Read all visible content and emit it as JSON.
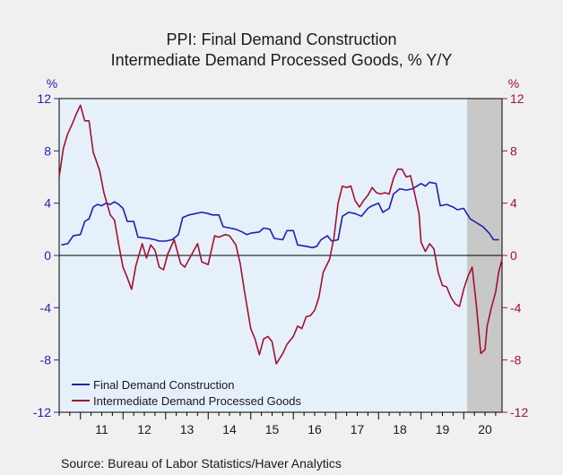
{
  "chart_data": {
    "type": "line",
    "title": [
      "PPI: Final Demand Construction",
      "Intermediate Demand Processed Goods, % Y/Y"
    ],
    "left_unit": "%",
    "right_unit": "%",
    "ylim": [
      -12,
      12
    ],
    "y_ticks": [
      12,
      8,
      4,
      0,
      -4,
      -8,
      -12
    ],
    "y_tick_labels": [
      "12",
      "8",
      "4",
      "0",
      "-4",
      "-8",
      "-12"
    ],
    "x_range": [
      2010.5,
      2020.9
    ],
    "x_ticks": [
      {
        "label": "11",
        "year": 2011
      },
      {
        "label": "12",
        "year": 2012
      },
      {
        "label": "13",
        "year": 2013
      },
      {
        "label": "14",
        "year": 2014
      },
      {
        "label": "15",
        "year": 2015
      },
      {
        "label": "16",
        "year": 2016
      },
      {
        "label": "17",
        "year": 2017
      },
      {
        "label": "18",
        "year": 2018
      },
      {
        "label": "19",
        "year": 2019
      },
      {
        "label": "20",
        "year": 2020
      }
    ],
    "recession_shading": [
      2020.08,
      2020.9
    ],
    "colors": {
      "plot_bg": "#e6f0fb",
      "recession": "#c8c8c8",
      "series_construction": "#1f1fb4",
      "series_processed": "#a3112f",
      "left_axis": "#1f1fb4",
      "right_axis": "#a3112f"
    },
    "legend": {
      "placement": "bottom-left"
    },
    "series": [
      {
        "name": "Final Demand Construction",
        "color": "#1f1fb4",
        "points": [
          [
            2010.55,
            0.8
          ],
          [
            2010.7,
            0.9
          ],
          [
            2010.83,
            1.5
          ],
          [
            2011.0,
            1.6
          ],
          [
            2011.1,
            2.6
          ],
          [
            2011.2,
            2.8
          ],
          [
            2011.3,
            3.7
          ],
          [
            2011.4,
            3.9
          ],
          [
            2011.5,
            3.8
          ],
          [
            2011.6,
            4.0
          ],
          [
            2011.7,
            3.9
          ],
          [
            2011.8,
            4.1
          ],
          [
            2011.9,
            3.9
          ],
          [
            2012.0,
            3.6
          ],
          [
            2012.1,
            2.6
          ],
          [
            2012.25,
            2.6
          ],
          [
            2012.35,
            1.4
          ],
          [
            2012.6,
            1.3
          ],
          [
            2012.75,
            1.2
          ],
          [
            2012.85,
            1.1
          ],
          [
            2013.0,
            1.1
          ],
          [
            2013.15,
            1.2
          ],
          [
            2013.3,
            1.6
          ],
          [
            2013.4,
            2.9
          ],
          [
            2013.55,
            3.1
          ],
          [
            2013.7,
            3.2
          ],
          [
            2013.85,
            3.3
          ],
          [
            2014.0,
            3.2
          ],
          [
            2014.1,
            3.1
          ],
          [
            2014.25,
            3.1
          ],
          [
            2014.35,
            2.2
          ],
          [
            2014.5,
            2.1
          ],
          [
            2014.65,
            2.0
          ],
          [
            2014.8,
            1.8
          ],
          [
            2014.9,
            1.6
          ],
          [
            2015.0,
            1.7
          ],
          [
            2015.2,
            1.8
          ],
          [
            2015.3,
            2.1
          ],
          [
            2015.45,
            2.0
          ],
          [
            2015.55,
            1.3
          ],
          [
            2015.75,
            1.2
          ],
          [
            2015.85,
            1.9
          ],
          [
            2016.0,
            1.9
          ],
          [
            2016.1,
            0.8
          ],
          [
            2016.3,
            0.7
          ],
          [
            2016.45,
            0.6
          ],
          [
            2016.55,
            0.7
          ],
          [
            2016.65,
            1.2
          ],
          [
            2016.8,
            1.5
          ],
          [
            2016.9,
            1.1
          ],
          [
            2017.05,
            1.2
          ],
          [
            2017.15,
            3.0
          ],
          [
            2017.3,
            3.3
          ],
          [
            2017.45,
            3.2
          ],
          [
            2017.6,
            3.0
          ],
          [
            2017.75,
            3.6
          ],
          [
            2017.85,
            3.8
          ],
          [
            2018.0,
            4.0
          ],
          [
            2018.1,
            3.3
          ],
          [
            2018.25,
            3.6
          ],
          [
            2018.35,
            4.7
          ],
          [
            2018.5,
            5.1
          ],
          [
            2018.65,
            5.0
          ],
          [
            2018.8,
            5.1
          ],
          [
            2018.9,
            5.3
          ],
          [
            2019.0,
            5.5
          ],
          [
            2019.1,
            5.3
          ],
          [
            2019.2,
            5.6
          ],
          [
            2019.35,
            5.5
          ],
          [
            2019.45,
            3.8
          ],
          [
            2019.6,
            3.9
          ],
          [
            2019.75,
            3.7
          ],
          [
            2019.85,
            3.5
          ],
          [
            2020.0,
            3.6
          ],
          [
            2020.15,
            2.8
          ],
          [
            2020.3,
            2.5
          ],
          [
            2020.45,
            2.2
          ],
          [
            2020.6,
            1.7
          ],
          [
            2020.7,
            1.2
          ],
          [
            2020.83,
            1.2
          ]
        ]
      },
      {
        "name": "Intermediate Demand Processed Goods",
        "color": "#a3112f",
        "points": [
          [
            2010.5,
            6.0
          ],
          [
            2010.6,
            8.2
          ],
          [
            2010.7,
            9.3
          ],
          [
            2010.8,
            10.0
          ],
          [
            2010.9,
            10.8
          ],
          [
            2011.0,
            11.5
          ],
          [
            2011.1,
            10.3
          ],
          [
            2011.2,
            10.3
          ],
          [
            2011.3,
            7.9
          ],
          [
            2011.45,
            6.5
          ],
          [
            2011.55,
            4.8
          ],
          [
            2011.7,
            3.1
          ],
          [
            2011.8,
            2.7
          ],
          [
            2011.9,
            0.8
          ],
          [
            2012.0,
            -0.9
          ],
          [
            2012.1,
            -1.7
          ],
          [
            2012.2,
            -2.6
          ],
          [
            2012.3,
            -0.8
          ],
          [
            2012.45,
            0.9
          ],
          [
            2012.55,
            -0.2
          ],
          [
            2012.65,
            0.8
          ],
          [
            2012.75,
            0.4
          ],
          [
            2012.85,
            -0.9
          ],
          [
            2012.95,
            -1.1
          ],
          [
            2013.05,
            0.1
          ],
          [
            2013.2,
            1.2
          ],
          [
            2013.35,
            -0.6
          ],
          [
            2013.45,
            -0.9
          ],
          [
            2013.6,
            0.0
          ],
          [
            2013.75,
            0.9
          ],
          [
            2013.85,
            -0.5
          ],
          [
            2014.0,
            -0.7
          ],
          [
            2014.15,
            1.5
          ],
          [
            2014.25,
            1.4
          ],
          [
            2014.4,
            1.6
          ],
          [
            2014.5,
            1.5
          ],
          [
            2014.65,
            0.8
          ],
          [
            2014.75,
            -0.6
          ],
          [
            2014.85,
            -2.7
          ],
          [
            2015.0,
            -5.6
          ],
          [
            2015.1,
            -6.4
          ],
          [
            2015.2,
            -7.6
          ],
          [
            2015.3,
            -6.4
          ],
          [
            2015.4,
            -6.2
          ],
          [
            2015.5,
            -6.6
          ],
          [
            2015.6,
            -8.3
          ],
          [
            2015.75,
            -7.5
          ],
          [
            2015.85,
            -6.8
          ],
          [
            2016.0,
            -6.2
          ],
          [
            2016.1,
            -5.4
          ],
          [
            2016.2,
            -5.6
          ],
          [
            2016.3,
            -4.7
          ],
          [
            2016.4,
            -4.6
          ],
          [
            2016.5,
            -4.2
          ],
          [
            2016.6,
            -3.2
          ],
          [
            2016.7,
            -1.3
          ],
          [
            2016.85,
            -0.3
          ],
          [
            2016.95,
            1.3
          ],
          [
            2017.05,
            4.0
          ],
          [
            2017.15,
            5.3
          ],
          [
            2017.25,
            5.2
          ],
          [
            2017.35,
            5.3
          ],
          [
            2017.45,
            4.2
          ],
          [
            2017.55,
            3.7
          ],
          [
            2017.65,
            4.2
          ],
          [
            2017.75,
            4.6
          ],
          [
            2017.85,
            5.2
          ],
          [
            2017.95,
            4.8
          ],
          [
            2018.05,
            4.7
          ],
          [
            2018.15,
            4.8
          ],
          [
            2018.25,
            4.7
          ],
          [
            2018.35,
            5.9
          ],
          [
            2018.45,
            6.6
          ],
          [
            2018.55,
            6.6
          ],
          [
            2018.65,
            6.0
          ],
          [
            2018.75,
            6.1
          ],
          [
            2018.85,
            4.7
          ],
          [
            2018.95,
            3.2
          ],
          [
            2019.0,
            1.0
          ],
          [
            2019.1,
            0.3
          ],
          [
            2019.2,
            0.9
          ],
          [
            2019.3,
            0.5
          ],
          [
            2019.4,
            -1.3
          ],
          [
            2019.5,
            -2.3
          ],
          [
            2019.6,
            -2.4
          ],
          [
            2019.7,
            -3.2
          ],
          [
            2019.8,
            -3.7
          ],
          [
            2019.9,
            -3.9
          ],
          [
            2020.0,
            -2.6
          ],
          [
            2020.1,
            -1.6
          ],
          [
            2020.2,
            -0.9
          ],
          [
            2020.3,
            -3.9
          ],
          [
            2020.4,
            -7.5
          ],
          [
            2020.5,
            -7.2
          ],
          [
            2020.55,
            -5.4
          ],
          [
            2020.65,
            -4.0
          ],
          [
            2020.75,
            -2.8
          ],
          [
            2020.82,
            -1.3
          ],
          [
            2020.9,
            -0.3
          ]
        ]
      }
    ],
    "source": "Source:  Bureau of Labor Statistics/Haver Analytics"
  }
}
